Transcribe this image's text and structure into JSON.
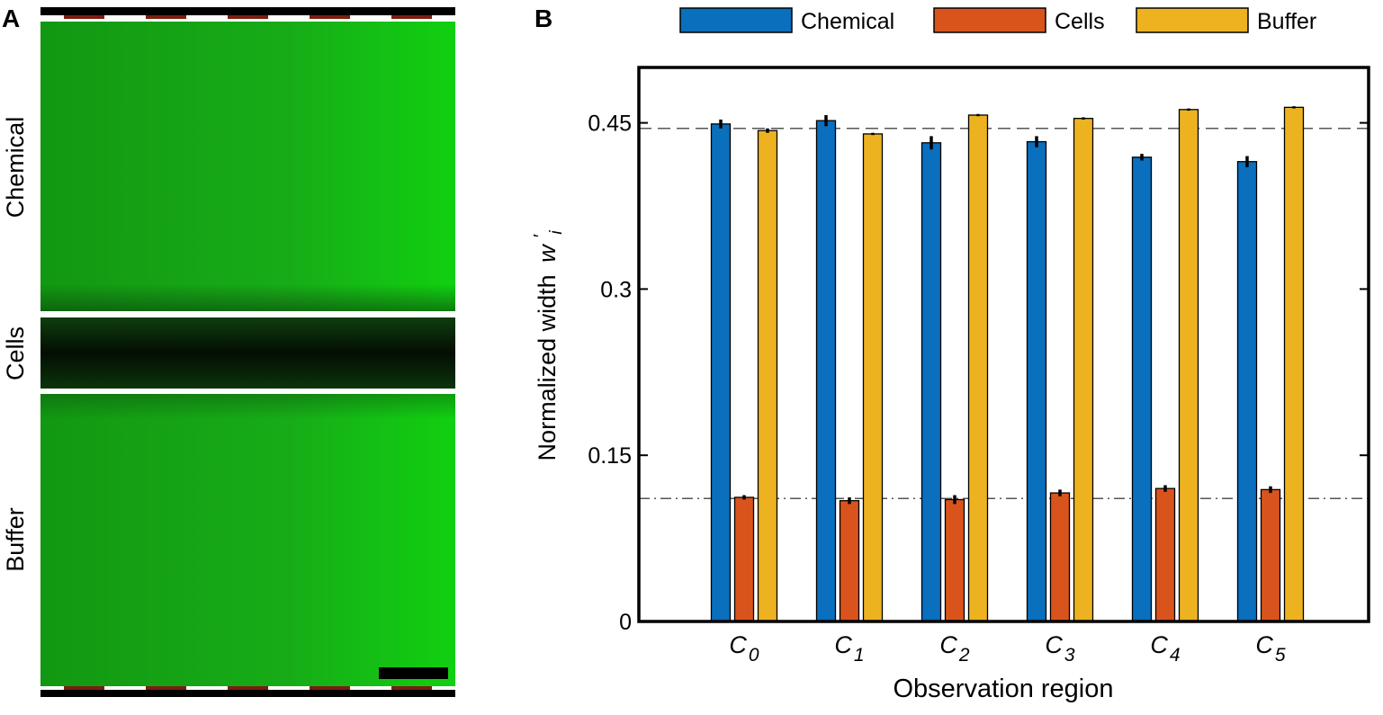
{
  "panels": {
    "a": {
      "label": "A",
      "channel_labels": [
        "Chemical",
        "Cells",
        "Buffer"
      ],
      "colors": {
        "fluorescence": "#19c419",
        "dark_channel": "#051a05",
        "wall_marker": "#7a1e10"
      }
    },
    "b": {
      "label": "B"
    }
  },
  "chart_data": {
    "type": "bar",
    "xlabel": "Observation region",
    "ylabel": "Normalized width",
    "ylabel_symbol": "w",
    "ylabel_subscript": "i",
    "ylabel_prime": "′",
    "categories": [
      {
        "symbol": "C",
        "sub": "0"
      },
      {
        "symbol": "C",
        "sub": "1"
      },
      {
        "symbol": "C",
        "sub": "2"
      },
      {
        "symbol": "C",
        "sub": "3"
      },
      {
        "symbol": "C",
        "sub": "4"
      },
      {
        "symbol": "C",
        "sub": "5"
      }
    ],
    "ylim": [
      0,
      0.5
    ],
    "yticks": [
      0,
      0.15,
      0.3,
      0.45
    ],
    "ytick_labels": [
      "0",
      "0.15",
      "0.3",
      "0.45"
    ],
    "legend_position": "top",
    "grid": false,
    "series": [
      {
        "name": "Chemical",
        "color": "#0a6fbd",
        "values": [
          0.449,
          0.452,
          0.432,
          0.433,
          0.419,
          0.415
        ],
        "errors": [
          0.004,
          0.005,
          0.006,
          0.005,
          0.003,
          0.005
        ]
      },
      {
        "name": "Cells",
        "color": "#d9541c",
        "values": [
          0.112,
          0.109,
          0.11,
          0.116,
          0.12,
          0.119
        ],
        "errors": [
          0.002,
          0.003,
          0.004,
          0.003,
          0.003,
          0.003
        ]
      },
      {
        "name": "Buffer",
        "color": "#edb220",
        "values": [
          0.443,
          0.44,
          0.457,
          0.454,
          0.462,
          0.464
        ],
        "errors": [
          0.002,
          0.001,
          0.001,
          0.001,
          0.001,
          0.001
        ]
      }
    ],
    "reference_lines": [
      {
        "value": 0.445,
        "style": "dashed"
      },
      {
        "value": 0.111,
        "style": "dash-dot"
      }
    ]
  }
}
